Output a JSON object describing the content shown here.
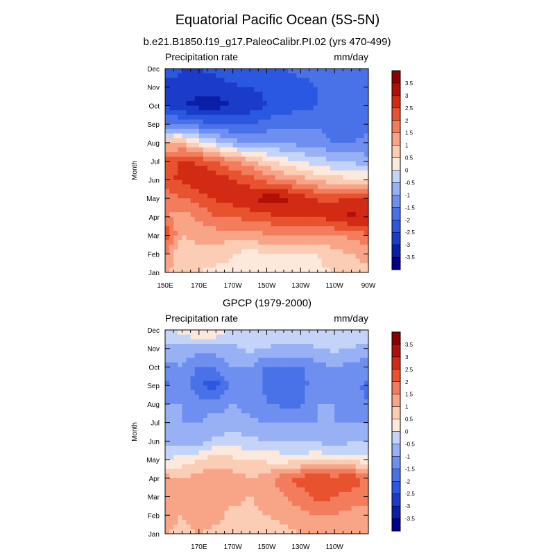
{
  "figure": {
    "title": "Equatorial Pacific Ocean (5S-5N)"
  },
  "chart_data": [
    {
      "type": "heatmap",
      "title": "b.e21.B1850.f19_g17.PaleoCalibr.PI.02 (yrs 470-499)",
      "left_label": "Precipitation rate",
      "right_label": "mm/day",
      "ylabel": "Month",
      "xlabel": "",
      "x_ticks": [
        {
          "lon": 150,
          "label": "150E"
        },
        {
          "lon": 170,
          "label": "170E"
        },
        {
          "lon": 190,
          "label": "170W"
        },
        {
          "lon": 210,
          "label": "150W"
        },
        {
          "lon": 230,
          "label": "130W"
        },
        {
          "lon": 250,
          "label": "110W"
        },
        {
          "lon": 270,
          "label": "90W"
        }
      ],
      "xlim": [
        150,
        270
      ],
      "y_categories": [
        "Jan",
        "Feb",
        "Mar",
        "Apr",
        "May",
        "Jun",
        "Jul",
        "Aug",
        "Sep",
        "Oct",
        "Nov",
        "Dec"
      ],
      "x": [
        150,
        160,
        170,
        180,
        190,
        200,
        210,
        220,
        230,
        240,
        250,
        260,
        270
      ],
      "z": [
        [
          1.2,
          0.5,
          0.5,
          0.3,
          0.4,
          0.0,
          0.0,
          0.2,
          0.3,
          0.4,
          0.5,
          0.8,
          0.8
        ],
        [
          1.6,
          0.5,
          0.8,
          0.8,
          0.5,
          0.3,
          0.5,
          0.5,
          0.4,
          0.5,
          0.8,
          1.0,
          1.2
        ],
        [
          2.5,
          1.0,
          1.2,
          1.2,
          1.2,
          1.3,
          1.4,
          1.5,
          1.5,
          1.4,
          1.5,
          1.6,
          2.0
        ],
        [
          1.6,
          1.2,
          1.6,
          2.0,
          2.0,
          2.2,
          2.3,
          2.6,
          2.5,
          2.5,
          2.8,
          3.2,
          2.8
        ],
        [
          1.6,
          2.0,
          2.2,
          2.6,
          2.8,
          3.0,
          3.2,
          3.2,
          2.8,
          2.5,
          2.4,
          2.5,
          2.5
        ],
        [
          2.4,
          2.6,
          3.0,
          2.8,
          2.5,
          2.2,
          1.8,
          1.5,
          1.2,
          0.9,
          0.7,
          0.6,
          0.5
        ],
        [
          2.2,
          2.6,
          2.4,
          2.0,
          1.6,
          1.2,
          0.6,
          0.2,
          0.0,
          -0.3,
          -0.5,
          -0.6,
          -0.8
        ],
        [
          0.8,
          1.0,
          0.3,
          -0.3,
          -0.8,
          -1.0,
          -1.0,
          -1.0,
          -1.2,
          -1.2,
          -1.5,
          -1.5,
          -1.4
        ],
        [
          -1.5,
          -1.5,
          -1.8,
          -2.0,
          -2.0,
          -2.0,
          -1.8,
          -1.6,
          -1.6,
          -1.6,
          -1.8,
          -1.8,
          -1.6
        ],
        [
          -2.5,
          -3.0,
          -3.2,
          -3.2,
          -3.0,
          -2.8,
          -2.5,
          -2.3,
          -2.2,
          -2.0,
          -2.0,
          -1.8,
          -1.5
        ],
        [
          -2.8,
          -2.6,
          -2.8,
          -2.8,
          -2.6,
          -2.5,
          -2.4,
          -2.3,
          -2.2,
          -2.0,
          -2.0,
          -1.8,
          -1.6
        ],
        [
          -2.0,
          -2.5,
          -2.5,
          -2.3,
          -2.0,
          -2.0,
          -2.0,
          -2.0,
          -1.8,
          -1.8,
          -1.8,
          -1.6,
          -1.5
        ]
      ],
      "levels": [
        -3.5,
        -3,
        -2.5,
        -2,
        -1.5,
        -1,
        -0.5,
        0,
        0.5,
        1,
        1.5,
        2,
        2.5,
        3,
        3.5
      ],
      "colorbar_labels": [
        "3.5",
        "3",
        "2.5",
        "2",
        "1.5",
        "1",
        "0.5",
        "0",
        "-0.5",
        "-1",
        "-1.5",
        "-2",
        "-2.5",
        "-3",
        "-3.5"
      ]
    },
    {
      "type": "heatmap",
      "title": "GPCP (1979-2000)",
      "left_label": "Precipitation rate",
      "right_label": "mm/day",
      "ylabel": "Month",
      "xlabel": "",
      "x_ticks": [
        {
          "lon": 170,
          "label": "170E"
        },
        {
          "lon": 190,
          "label": "170W"
        },
        {
          "lon": 210,
          "label": "150W"
        },
        {
          "lon": 230,
          "label": "130W"
        },
        {
          "lon": 250,
          "label": "110W"
        }
      ],
      "xlim": [
        150,
        270
      ],
      "y_categories": [
        "Jan",
        "Feb",
        "Mar",
        "Apr",
        "May",
        "Jun",
        "Jul",
        "Aug",
        "Sep",
        "Oct",
        "Nov",
        "Dec"
      ],
      "x": [
        150,
        160,
        170,
        180,
        190,
        200,
        210,
        220,
        230,
        240,
        250,
        260,
        270
      ],
      "z": [
        [
          1.0,
          0.8,
          1.0,
          0.8,
          0.7,
          0.5,
          0.6,
          0.8,
          1.0,
          1.2,
          1.2,
          1.0,
          1.2
        ],
        [
          1.2,
          1.0,
          1.4,
          1.2,
          0.8,
          0.8,
          1.0,
          1.2,
          1.3,
          1.5,
          1.5,
          1.3,
          1.3
        ],
        [
          1.5,
          1.2,
          1.5,
          1.5,
          1.2,
          1.0,
          1.2,
          1.5,
          1.8,
          2.2,
          2.0,
          1.8,
          1.6
        ],
        [
          1.2,
          1.0,
          1.2,
          1.4,
          1.2,
          1.0,
          1.2,
          1.8,
          2.2,
          2.4,
          2.2,
          2.4,
          1.8
        ],
        [
          0.0,
          0.2,
          0.5,
          0.8,
          0.6,
          0.5,
          0.4,
          0.3,
          0.3,
          0.4,
          0.3,
          0.3,
          0.2
        ],
        [
          -0.6,
          -0.8,
          -0.8,
          -0.4,
          -0.2,
          -0.4,
          -0.5,
          -0.6,
          -0.6,
          -0.6,
          -0.7,
          -0.6,
          -0.6
        ],
        [
          -1.0,
          -1.0,
          -1.0,
          -0.8,
          -0.8,
          -0.9,
          -1.0,
          -1.0,
          -1.0,
          -1.0,
          -1.0,
          -1.0,
          -1.0
        ],
        [
          -1.0,
          -1.0,
          -1.2,
          -1.2,
          -1.0,
          -1.2,
          -1.5,
          -1.6,
          -1.6,
          -1.0,
          -1.0,
          -1.2,
          -1.5
        ],
        [
          -1.6,
          -1.2,
          -2.0,
          -2.2,
          -1.4,
          -1.2,
          -1.6,
          -1.8,
          -1.7,
          -1.2,
          -1.0,
          -1.4,
          -1.6
        ],
        [
          -1.2,
          -1.0,
          -1.6,
          -1.4,
          -1.0,
          -1.0,
          -1.6,
          -1.6,
          -1.6,
          -1.2,
          -1.0,
          -1.2,
          -1.4
        ],
        [
          -0.6,
          -0.6,
          -0.8,
          -0.8,
          -0.6,
          -0.4,
          -0.5,
          -0.6,
          -0.6,
          -0.5,
          -0.4,
          -0.5,
          -0.6
        ],
        [
          -0.3,
          0.2,
          0.6,
          0.5,
          -0.2,
          -0.3,
          -0.3,
          -0.3,
          -0.3,
          -0.3,
          -0.3,
          -0.3,
          -0.3
        ]
      ],
      "levels": [
        -3.5,
        -3,
        -2.5,
        -2,
        -1.5,
        -1,
        -0.5,
        0,
        0.5,
        1,
        1.5,
        2,
        2.5,
        3,
        3.5
      ],
      "colorbar_labels": [
        "3.5",
        "3",
        "2.5",
        "2",
        "1.5",
        "1",
        "0.5",
        "0",
        "-0.5",
        "-1",
        "-1.5",
        "-2",
        "-2.5",
        "-3",
        "-3.5"
      ]
    }
  ],
  "colormap": [
    "#00008b",
    "#0a1fa8",
    "#1a3cc8",
    "#2a58e0",
    "#4a72e8",
    "#6f8ff0",
    "#98b0f4",
    "#c4d4f8",
    "#fde9dc",
    "#fbcdb4",
    "#f7a586",
    "#f27c5c",
    "#e8532f",
    "#d22b14",
    "#b01008",
    "#8b0000"
  ]
}
